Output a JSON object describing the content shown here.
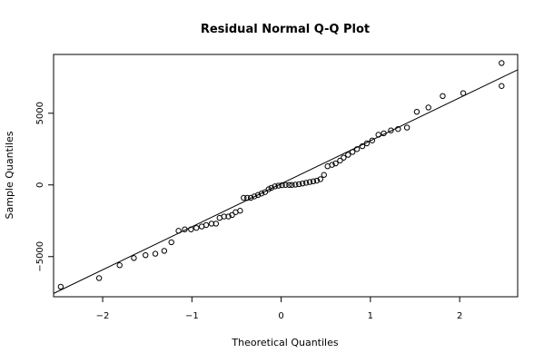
{
  "chart_data": {
    "type": "scatter",
    "title": "Residual Normal Q-Q Plot",
    "xlabel": "Theoretical Quantiles",
    "ylabel": "Sample Quantiles",
    "xlim": [
      -2.55,
      2.65
    ],
    "ylim": [
      -7800,
      9100
    ],
    "x_ticks": [
      -2,
      -1,
      0,
      1,
      2
    ],
    "x_tick_labels": [
      "−2",
      "−1",
      "0",
      "1",
      "2"
    ],
    "y_ticks": [
      -5000,
      0,
      5000
    ],
    "y_tick_labels": [
      "−5000",
      "0",
      "5000"
    ],
    "grid": false,
    "legend": "none",
    "reference_line": {
      "intercept": 80,
      "slope": 3000
    },
    "points": [
      [
        -2.47,
        -7100
      ],
      [
        -2.04,
        -6500
      ],
      [
        -1.81,
        -5600
      ],
      [
        -1.65,
        -5100
      ],
      [
        -1.52,
        -4900
      ],
      [
        -1.41,
        -4800
      ],
      [
        -1.31,
        -4600
      ],
      [
        -1.23,
        -4000
      ],
      [
        -1.15,
        -3200
      ],
      [
        -1.08,
        -3100
      ],
      [
        -1.01,
        -3100
      ],
      [
        -0.95,
        -3000
      ],
      [
        -0.89,
        -2900
      ],
      [
        -0.84,
        -2800
      ],
      [
        -0.78,
        -2700
      ],
      [
        -0.73,
        -2700
      ],
      [
        -0.69,
        -2300
      ],
      [
        -0.64,
        -2200
      ],
      [
        -0.59,
        -2200
      ],
      [
        -0.55,
        -2100
      ],
      [
        -0.51,
        -1900
      ],
      [
        -0.46,
        -1800
      ],
      [
        -0.42,
        -900
      ],
      [
        -0.38,
        -900
      ],
      [
        -0.34,
        -900
      ],
      [
        -0.3,
        -800
      ],
      [
        -0.26,
        -700
      ],
      [
        -0.22,
        -600
      ],
      [
        -0.18,
        -500
      ],
      [
        -0.14,
        -300
      ],
      [
        -0.11,
        -200
      ],
      [
        -0.07,
        -100
      ],
      [
        -0.03,
        -50
      ],
      [
        0.01,
        -20
      ],
      [
        0.05,
        0
      ],
      [
        0.09,
        0
      ],
      [
        0.12,
        0
      ],
      [
        0.16,
        20
      ],
      [
        0.2,
        50
      ],
      [
        0.24,
        100
      ],
      [
        0.28,
        150
      ],
      [
        0.32,
        200
      ],
      [
        0.36,
        250
      ],
      [
        0.4,
        300
      ],
      [
        0.44,
        400
      ],
      [
        0.48,
        700
      ],
      [
        0.52,
        1300
      ],
      [
        0.57,
        1400
      ],
      [
        0.61,
        1500
      ],
      [
        0.66,
        1700
      ],
      [
        0.7,
        1900
      ],
      [
        0.75,
        2100
      ],
      [
        0.8,
        2300
      ],
      [
        0.85,
        2500
      ],
      [
        0.91,
        2700
      ],
      [
        0.96,
        2900
      ],
      [
        1.02,
        3100
      ],
      [
        1.09,
        3500
      ],
      [
        1.15,
        3600
      ],
      [
        1.23,
        3800
      ],
      [
        1.31,
        3900
      ],
      [
        1.41,
        4000
      ],
      [
        1.52,
        5100
      ],
      [
        1.65,
        5400
      ],
      [
        1.81,
        6200
      ],
      [
        2.04,
        6400
      ],
      [
        2.47,
        6900
      ],
      [
        2.47,
        8500
      ]
    ]
  }
}
